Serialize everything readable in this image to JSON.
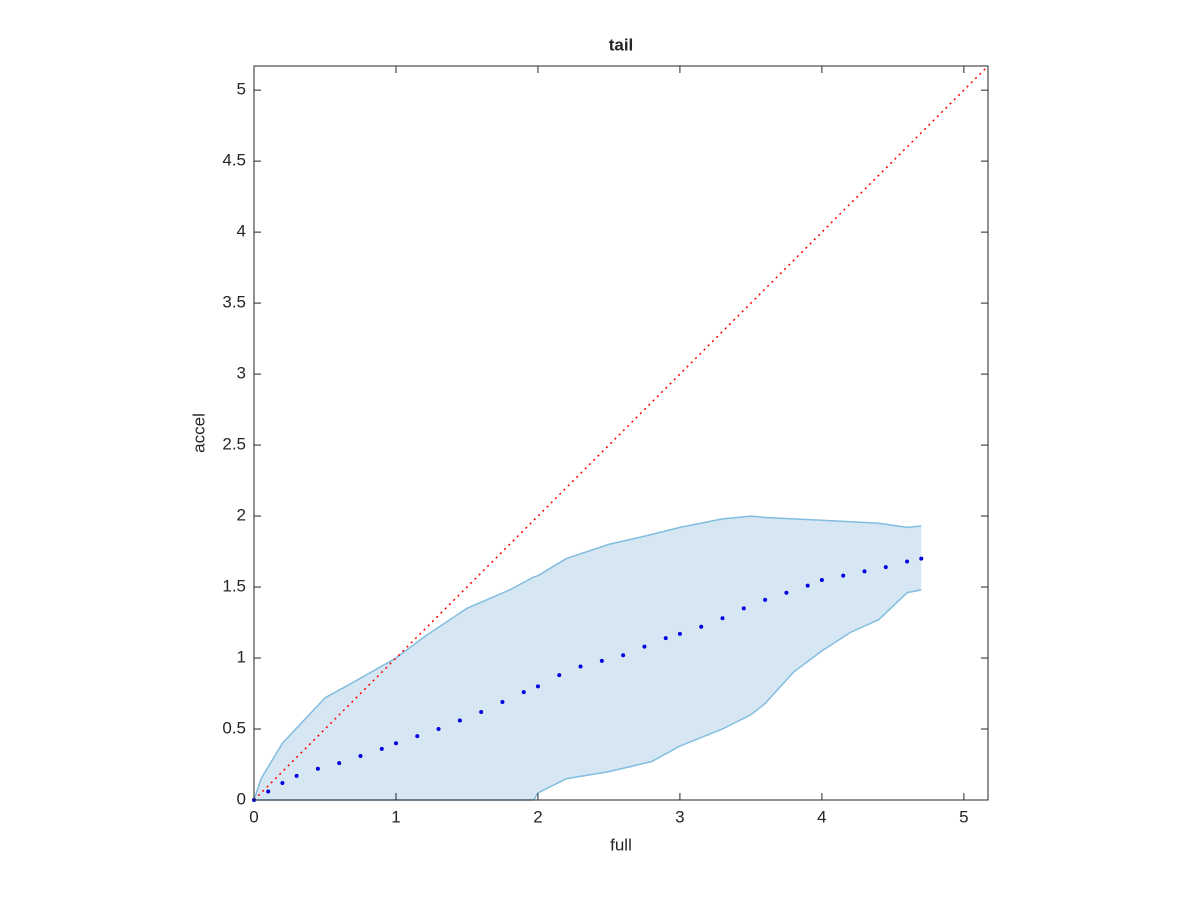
{
  "chart_data": {
    "type": "scatter",
    "title": "tail",
    "x_label": "full",
    "y_label": "accel",
    "xlim": [
      0,
      5.17
    ],
    "ylim": [
      0,
      5.17
    ],
    "xticks": [
      0,
      1,
      2,
      3,
      4,
      5
    ],
    "yticks": [
      0,
      0.5,
      1,
      1.5,
      2,
      2.5,
      3,
      3.5,
      4,
      4.5,
      5
    ],
    "grid": false,
    "band": {
      "color": "#d6e7f3",
      "edge_color": "#82bde0",
      "x": [
        0,
        0.05,
        0.2,
        0.5,
        0.7,
        1.0,
        1.2,
        1.5,
        1.8,
        1.97,
        2.0,
        2.2,
        2.5,
        2.8,
        3.0,
        3.3,
        3.5,
        3.6,
        3.8,
        4.0,
        4.2,
        4.4,
        4.6,
        4.7
      ],
      "upper": [
        0,
        0.15,
        0.4,
        0.72,
        0.83,
        1.0,
        1.15,
        1.35,
        1.48,
        1.57,
        1.58,
        1.7,
        1.8,
        1.87,
        1.92,
        1.98,
        2.0,
        1.99,
        1.98,
        1.97,
        1.96,
        1.95,
        1.92,
        1.93
      ],
      "lower": [
        0,
        0,
        0,
        0,
        0,
        0,
        0,
        0,
        0,
        0,
        0.05,
        0.15,
        0.2,
        0.27,
        0.38,
        0.5,
        0.6,
        0.68,
        0.9,
        1.05,
        1.18,
        1.27,
        1.46,
        1.48
      ]
    },
    "points": {
      "color": "#0000e0",
      "x": [
        0,
        0.1,
        0.2,
        0.3,
        0.45,
        0.6,
        0.75,
        0.9,
        1.0,
        1.15,
        1.3,
        1.45,
        1.6,
        1.75,
        1.9,
        2.0,
        2.15,
        2.3,
        2.45,
        2.6,
        2.75,
        2.9,
        3.0,
        3.15,
        3.3,
        3.45,
        3.6,
        3.75,
        3.9,
        4.0,
        4.15,
        4.3,
        4.45,
        4.6,
        4.7
      ],
      "y": [
        0,
        0.06,
        0.12,
        0.17,
        0.22,
        0.26,
        0.31,
        0.36,
        0.4,
        0.45,
        0.5,
        0.56,
        0.62,
        0.69,
        0.76,
        0.8,
        0.88,
        0.94,
        0.98,
        1.02,
        1.08,
        1.14,
        1.17,
        1.22,
        1.28,
        1.35,
        1.41,
        1.46,
        1.51,
        1.55,
        1.58,
        1.61,
        1.64,
        1.68,
        1.7
      ]
    },
    "reference_line": {
      "color": "#ff0000",
      "x": [
        0,
        5.17
      ],
      "y": [
        0,
        5.17
      ]
    }
  }
}
